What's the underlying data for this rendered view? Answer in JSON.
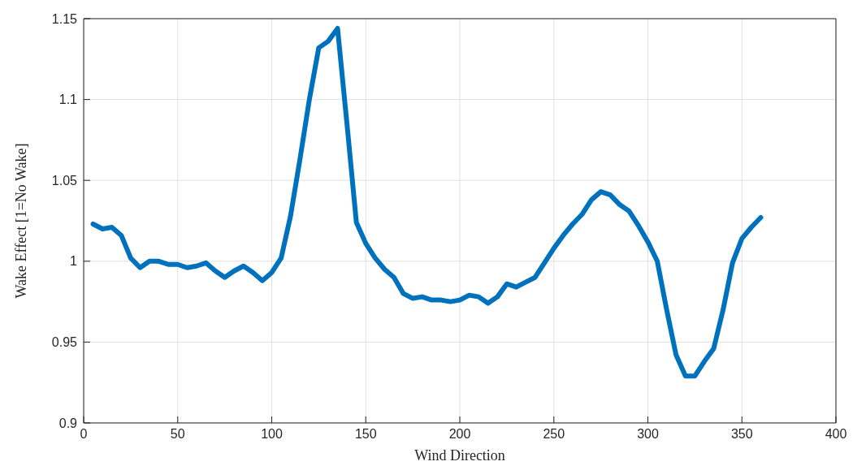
{
  "chart_data": {
    "type": "line",
    "xlabel": "Wind Direction",
    "ylabel": "Wake Effect [1=No Wake]",
    "x": [
      5,
      10,
      15,
      20,
      25,
      30,
      35,
      40,
      45,
      50,
      55,
      60,
      65,
      70,
      75,
      80,
      85,
      90,
      95,
      100,
      105,
      110,
      115,
      120,
      125,
      130,
      135,
      140,
      145,
      150,
      155,
      160,
      165,
      170,
      175,
      180,
      185,
      190,
      195,
      200,
      205,
      210,
      215,
      220,
      225,
      230,
      235,
      240,
      245,
      250,
      255,
      260,
      265,
      270,
      275,
      280,
      285,
      290,
      295,
      300,
      305,
      310,
      315,
      320,
      325,
      330,
      335,
      340,
      345,
      350,
      355,
      360
    ],
    "series": [
      {
        "color": "#0072bd",
        "values": [
          1.023,
          1.02,
          1.021,
          1.016,
          1.002,
          0.996,
          1.0,
          1.0,
          0.998,
          0.998,
          0.996,
          0.997,
          0.999,
          0.994,
          0.99,
          0.994,
          0.997,
          0.993,
          0.988,
          0.993,
          1.002,
          1.028,
          1.063,
          1.1,
          1.132,
          1.136,
          1.144,
          1.085,
          1.024,
          1.011,
          1.002,
          0.995,
          0.99,
          0.98,
          0.977,
          0.978,
          0.976,
          0.976,
          0.975,
          0.976,
          0.979,
          0.978,
          0.974,
          0.978,
          0.986,
          0.984,
          0.987,
          0.99,
          0.999,
          1.008,
          1.016,
          1.023,
          1.029,
          1.038,
          1.043,
          1.041,
          1.035,
          1.031,
          1.022,
          1.012,
          1.0,
          0.97,
          0.942,
          0.929,
          0.929,
          0.938,
          0.946,
          0.97,
          0.999,
          1.014,
          1.021,
          1.027
        ]
      }
    ],
    "xlim": [
      0,
      400
    ],
    "xticks": [
      0,
      50,
      100,
      150,
      200,
      250,
      300,
      350,
      400
    ],
    "ylim": [
      0.9,
      1.15
    ],
    "yticks": [
      0.9,
      0.95,
      1,
      1.05,
      1.1,
      1.15
    ],
    "grid": true,
    "marker": "none",
    "line_style": "solid"
  }
}
